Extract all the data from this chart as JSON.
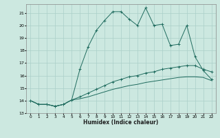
{
  "xlabel": "Humidex (Indice chaleur)",
  "bg_color": "#cce8e0",
  "grid_color": "#aacfc8",
  "line_color": "#1f6b5e",
  "xlim": [
    -0.5,
    22.5
  ],
  "ylim": [
    13,
    21.7
  ],
  "yticks": [
    13,
    14,
    15,
    16,
    17,
    18,
    19,
    20,
    21
  ],
  "xticks": [
    0,
    1,
    2,
    3,
    4,
    5,
    6,
    7,
    8,
    9,
    10,
    11,
    12,
    13,
    14,
    15,
    16,
    17,
    18,
    19,
    20,
    21,
    22
  ],
  "series1_x": [
    0,
    1,
    2,
    3,
    4,
    5,
    6,
    7,
    8,
    9,
    10,
    11,
    12,
    13,
    14,
    15,
    16,
    17,
    18,
    19,
    20,
    21,
    22
  ],
  "series1_y": [
    14.0,
    13.7,
    13.7,
    13.55,
    13.7,
    14.05,
    16.5,
    18.3,
    19.6,
    20.4,
    21.1,
    21.1,
    20.5,
    20.0,
    21.4,
    20.0,
    20.1,
    18.4,
    18.5,
    20.0,
    17.5,
    16.4,
    15.7
  ],
  "series2_x": [
    0,
    1,
    2,
    3,
    4,
    5,
    6,
    7,
    8,
    9,
    10,
    11,
    12,
    13,
    14,
    15,
    16,
    17,
    18,
    19,
    20,
    21,
    22
  ],
  "series2_y": [
    14.0,
    13.7,
    13.7,
    13.55,
    13.7,
    14.05,
    14.3,
    14.6,
    14.9,
    15.2,
    15.5,
    15.7,
    15.9,
    16.0,
    16.2,
    16.3,
    16.5,
    16.6,
    16.7,
    16.8,
    16.8,
    16.5,
    16.3
  ],
  "series3_x": [
    0,
    1,
    2,
    3,
    4,
    5,
    6,
    7,
    8,
    9,
    10,
    11,
    12,
    13,
    14,
    15,
    16,
    17,
    18,
    19,
    20,
    21,
    22
  ],
  "series3_y": [
    14.0,
    13.7,
    13.7,
    13.55,
    13.7,
    14.05,
    14.15,
    14.3,
    14.5,
    14.7,
    14.9,
    15.05,
    15.2,
    15.3,
    15.45,
    15.55,
    15.65,
    15.75,
    15.85,
    15.9,
    15.9,
    15.85,
    15.6
  ]
}
